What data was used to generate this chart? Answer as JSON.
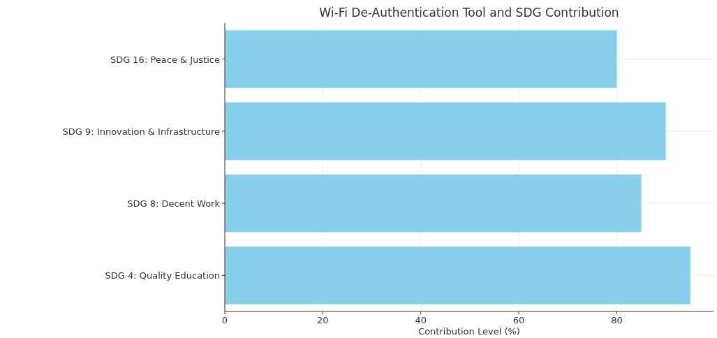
{
  "chart_data": {
    "type": "bar",
    "orientation": "horizontal",
    "title": "Wi-Fi De-Authentication Tool and SDG Contribution",
    "xlabel": "Contribution Level (%)",
    "categories": [
      "SDG 16: Peace & Justice",
      "SDG 9: Innovation & Infrastructure",
      "SDG 8: Decent Work",
      "SDG 4: Quality Education"
    ],
    "values": [
      80,
      90,
      85,
      95
    ],
    "color": "#87ceeb",
    "xlim": [
      0,
      99.75
    ],
    "xticks": [
      0,
      20,
      40,
      60,
      80
    ],
    "grid": true
  }
}
